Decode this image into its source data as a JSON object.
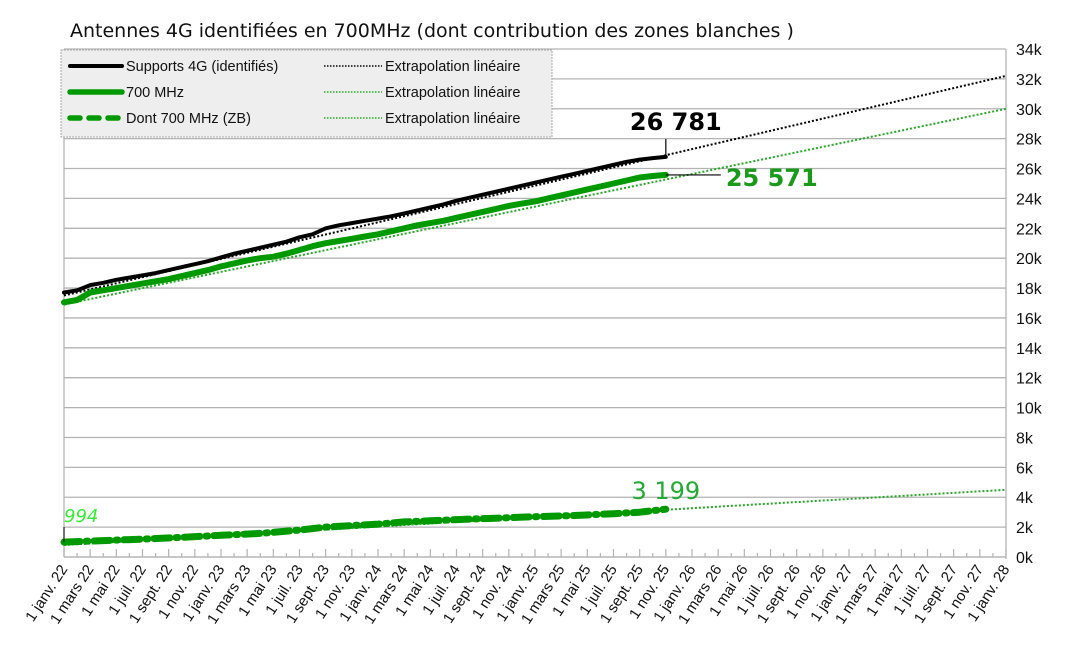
{
  "chart_data": {
    "type": "line",
    "title": "Antennes 4G identifiées en 700MHz (dont contribution des zones blanches )",
    "xlabel": "",
    "ylabel": "",
    "ylim": [
      0,
      34000
    ],
    "yticks": [
      {
        "value": 0,
        "label": "0k"
      },
      {
        "value": 2000,
        "label": "2k"
      },
      {
        "value": 4000,
        "label": "4k"
      },
      {
        "value": 6000,
        "label": "6k"
      },
      {
        "value": 8000,
        "label": "8k"
      },
      {
        "value": 10000,
        "label": "10k"
      },
      {
        "value": 12000,
        "label": "12k"
      },
      {
        "value": 14000,
        "label": "14k"
      },
      {
        "value": 16000,
        "label": "16k"
      },
      {
        "value": 18000,
        "label": "18k"
      },
      {
        "value": 20000,
        "label": "20k"
      },
      {
        "value": 22000,
        "label": "22k"
      },
      {
        "value": 24000,
        "label": "24k"
      },
      {
        "value": 26000,
        "label": "26k"
      },
      {
        "value": 28000,
        "label": "28k"
      },
      {
        "value": 30000,
        "label": "30k"
      },
      {
        "value": 32000,
        "label": "32k"
      },
      {
        "value": 34000,
        "label": "34k"
      }
    ],
    "y_axis_position": "right",
    "x_unit": "months since 1 janv. 22",
    "xlim": [
      0,
      72
    ],
    "xticks": [
      {
        "value": 0,
        "label": "1 janv. 22"
      },
      {
        "value": 2,
        "label": "1 mars 22"
      },
      {
        "value": 4,
        "label": "1 mai 22"
      },
      {
        "value": 6,
        "label": "1 juil. 22"
      },
      {
        "value": 8,
        "label": "1 sept. 22"
      },
      {
        "value": 10,
        "label": "1 nov. 22"
      },
      {
        "value": 12,
        "label": "1 janv. 23"
      },
      {
        "value": 14,
        "label": "1 mars 23"
      },
      {
        "value": 16,
        "label": "1 mai 23"
      },
      {
        "value": 18,
        "label": "1 juil. 23"
      },
      {
        "value": 20,
        "label": "1 sept. 23"
      },
      {
        "value": 22,
        "label": "1 nov. 23"
      },
      {
        "value": 24,
        "label": "1 janv. 24"
      },
      {
        "value": 26,
        "label": "1 mars 24"
      },
      {
        "value": 28,
        "label": "1 mai 24"
      },
      {
        "value": 30,
        "label": "1 juil. 24"
      },
      {
        "value": 32,
        "label": "1 sept. 24"
      },
      {
        "value": 34,
        "label": "1 nov. 24"
      },
      {
        "value": 36,
        "label": "1 janv. 25"
      },
      {
        "value": 38,
        "label": "1 mars 25"
      },
      {
        "value": 40,
        "label": "1 mai 25"
      },
      {
        "value": 42,
        "label": "1 juil. 25"
      },
      {
        "value": 44,
        "label": "1 sept. 25"
      },
      {
        "value": 46,
        "label": "1 nov. 25"
      },
      {
        "value": 48,
        "label": "1 janv. 26"
      },
      {
        "value": 50,
        "label": "1 mars 26"
      },
      {
        "value": 52,
        "label": "1 mai 26"
      },
      {
        "value": 54,
        "label": "1 juil. 26"
      },
      {
        "value": 56,
        "label": "1 sept. 26"
      },
      {
        "value": 58,
        "label": "1 nov. 26"
      },
      {
        "value": 60,
        "label": "1 janv. 27"
      },
      {
        "value": 62,
        "label": "1 mars 27"
      },
      {
        "value": 64,
        "label": "1 mai 27"
      },
      {
        "value": 66,
        "label": "1 juil. 27"
      },
      {
        "value": 68,
        "label": "1 sept. 27"
      },
      {
        "value": 70,
        "label": "1 nov. 27"
      },
      {
        "value": 72,
        "label": "1 janv. 28"
      }
    ],
    "grid": true,
    "legend_position": "top-left",
    "series": [
      {
        "name": "Supports 4G (identifiés)",
        "color": "#000000",
        "style": "solid",
        "x": [
          0,
          1,
          2,
          3,
          4,
          5,
          6,
          7,
          8,
          9,
          10,
          11,
          12,
          13,
          14,
          15,
          16,
          17,
          18,
          19,
          20,
          21,
          22,
          23,
          24,
          25,
          26,
          27,
          28,
          29,
          30,
          31,
          32,
          33,
          34,
          35,
          36,
          37,
          38,
          39,
          40,
          41,
          42,
          43,
          44,
          45,
          46
        ],
        "values": [
          17700,
          17850,
          18200,
          18350,
          18550,
          18700,
          18850,
          19000,
          19200,
          19400,
          19600,
          19800,
          20050,
          20300,
          20500,
          20700,
          20900,
          21100,
          21400,
          21600,
          22000,
          22200,
          22350,
          22500,
          22650,
          22800,
          23000,
          23200,
          23400,
          23600,
          23850,
          24050,
          24250,
          24450,
          24650,
          24850,
          25050,
          25250,
          25450,
          25650,
          25850,
          26050,
          26250,
          26450,
          26600,
          26700,
          26781
        ]
      },
      {
        "name": "700 MHz",
        "color": "#009900",
        "style": "solid",
        "x": [
          0,
          1,
          2,
          3,
          4,
          5,
          6,
          7,
          8,
          9,
          10,
          11,
          12,
          13,
          14,
          15,
          16,
          17,
          18,
          19,
          20,
          21,
          22,
          23,
          24,
          25,
          26,
          27,
          28,
          29,
          30,
          31,
          32,
          33,
          34,
          35,
          36,
          37,
          38,
          39,
          40,
          41,
          42,
          43,
          44,
          45,
          46
        ],
        "values": [
          17050,
          17200,
          17700,
          17850,
          18000,
          18150,
          18300,
          18450,
          18600,
          18800,
          19000,
          19200,
          19450,
          19650,
          19850,
          20000,
          20100,
          20300,
          20550,
          20800,
          21000,
          21150,
          21300,
          21450,
          21600,
          21800,
          22000,
          22200,
          22350,
          22500,
          22700,
          22900,
          23100,
          23300,
          23500,
          23650,
          23800,
          24000,
          24200,
          24400,
          24600,
          24800,
          25000,
          25200,
          25400,
          25500,
          25571
        ]
      },
      {
        "name": "Dont 700 MHz (ZB)",
        "color": "#009900",
        "style": "dashed",
        "x": [
          0,
          3,
          6,
          9,
          12,
          15,
          18,
          20,
          22,
          24,
          26,
          28,
          30,
          33,
          36,
          39,
          42,
          44,
          46
        ],
        "values": [
          994,
          1100,
          1200,
          1320,
          1450,
          1580,
          1800,
          2000,
          2100,
          2200,
          2350,
          2420,
          2500,
          2600,
          2700,
          2780,
          2900,
          3000,
          3199
        ]
      }
    ],
    "trendlines": [
      {
        "name": "Extrapolation linéaire",
        "color": "#000000",
        "style": "dotted",
        "x": [
          0,
          72
        ],
        "values": [
          17500,
          32200
        ]
      },
      {
        "name": "Extrapolation linéaire",
        "color": "#22aa22",
        "style": "dotted",
        "x": [
          0,
          72
        ],
        "values": [
          16900,
          30000
        ]
      },
      {
        "name": "Extrapolation linéaire",
        "color": "#22aa22",
        "style": "dotted",
        "x": [
          0,
          72
        ],
        "values": [
          800,
          4500
        ]
      }
    ],
    "annotations": [
      {
        "text": "26 781",
        "series": "Supports 4G (identifiés)",
        "x": 46,
        "value": 26781,
        "color": "#000000"
      },
      {
        "text": "25 571",
        "series": "700 MHz",
        "x": 46,
        "value": 25571,
        "color": "#1a991a"
      },
      {
        "text": "3 199",
        "series": "Dont 700 MHz (ZB)",
        "x": 46,
        "value": 3199,
        "color": "#22aa33"
      },
      {
        "text": "994",
        "series": "Dont 700 MHz (ZB)",
        "x": 0,
        "value": 994,
        "color": "#33ee33"
      }
    ]
  }
}
